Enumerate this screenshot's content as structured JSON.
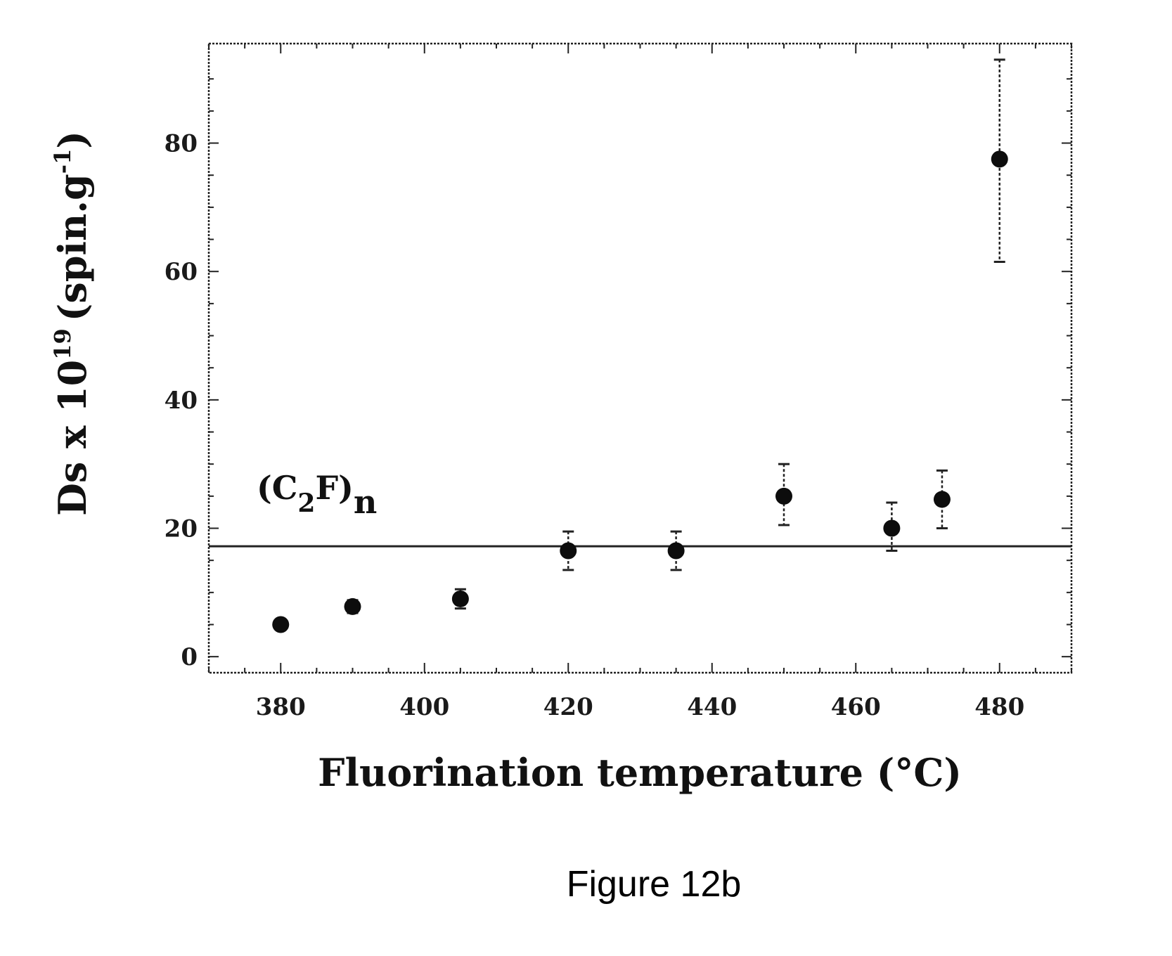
{
  "chart_data": {
    "type": "scatter",
    "xlabel": "Fluorination temperature (°C)",
    "ylabel": "Ds x 10",
    "ylabel_exponent": "19",
    "ylabel_units": "(spin.g",
    "ylabel_units_exponent": "-1",
    "ylabel_close": ")",
    "xlim": [
      370,
      490
    ],
    "ylim": [
      -2.5,
      95.5
    ],
    "x_ticks": [
      380,
      400,
      420,
      440,
      460,
      480
    ],
    "y_ticks": [
      0,
      20,
      40,
      60,
      80
    ],
    "grid": false,
    "series": [
      {
        "x": [
          380,
          390,
          405,
          420,
          435,
          450,
          465,
          472,
          480
        ],
        "y": [
          5,
          7.8,
          9,
          16.5,
          16.5,
          25,
          20,
          24.5,
          77.5
        ],
        "err_low": [
          0,
          1,
          1.5,
          3,
          3,
          4.5,
          3.5,
          4.5,
          16
        ],
        "err_high": [
          0,
          1,
          1.5,
          3,
          3,
          5,
          4,
          4.5,
          15.5
        ]
      }
    ],
    "reference_line": {
      "y": 17.2,
      "label_main": "(C",
      "label_sub1": "2",
      "label_mid": "F)",
      "label_sub2": "n"
    }
  },
  "caption": "Figure 12b"
}
